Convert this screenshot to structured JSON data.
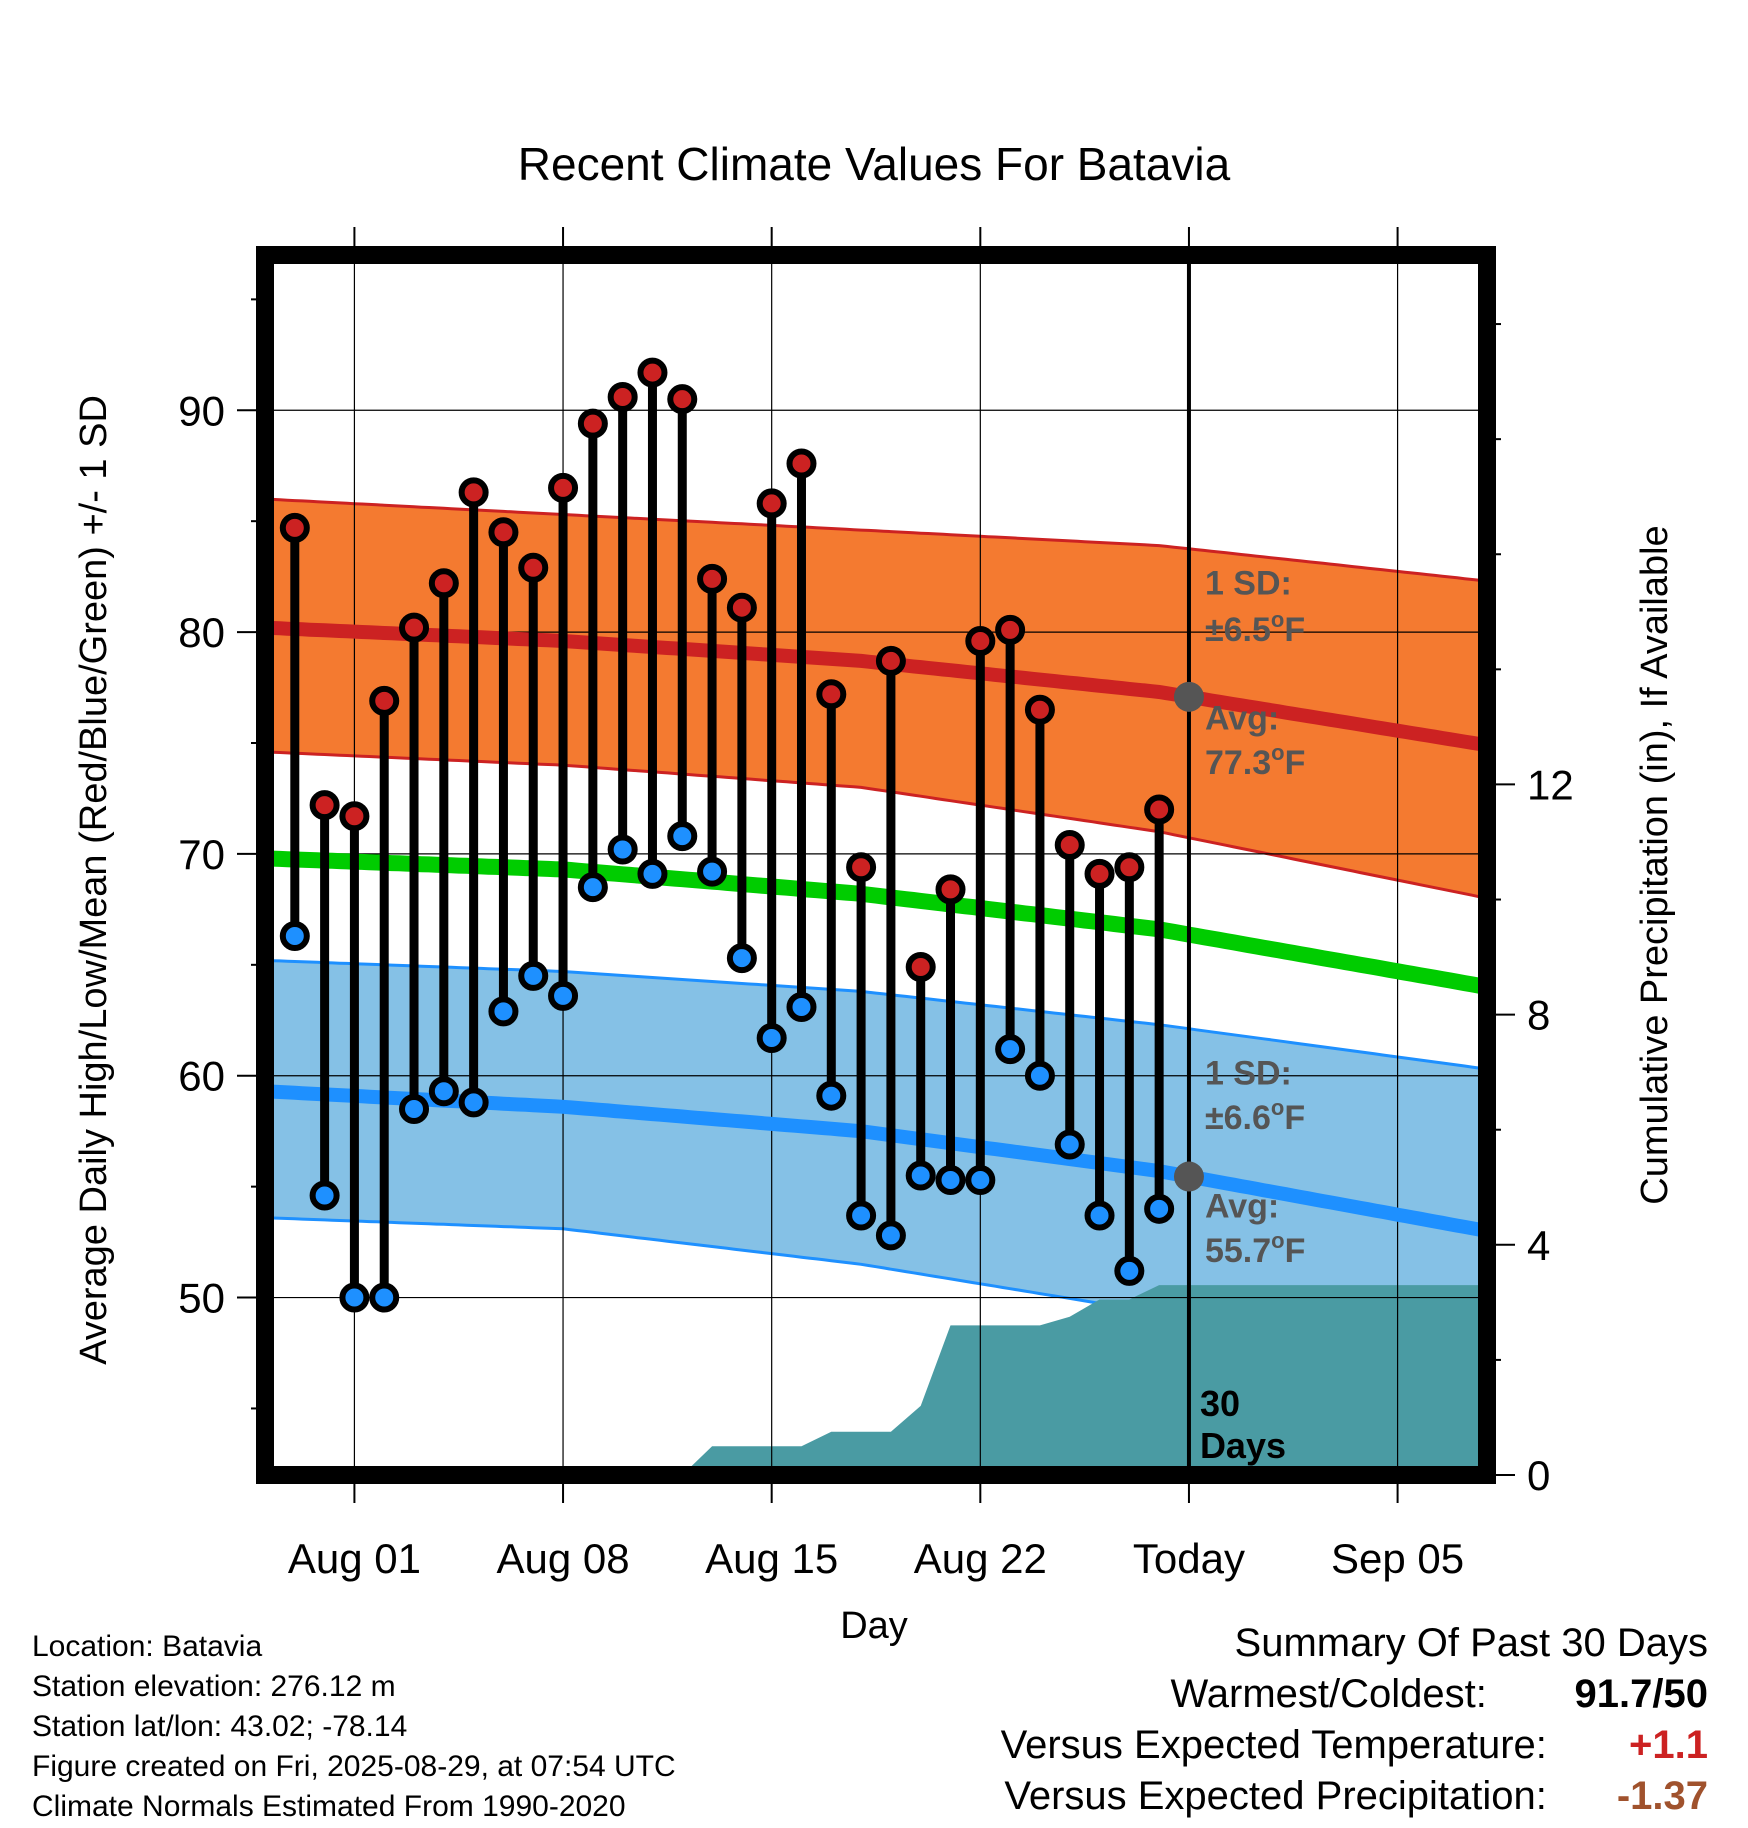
{
  "chart_data": {
    "type": "line",
    "title": "Recent Climate Values For Batavia",
    "xlabel": "Day",
    "ylabel": "Average Daily High/Low/Mean (Red/Blue/Green) +/- 1 SD",
    "y2label": "Cumulative Precipitation (in), If Available",
    "x_range": [
      "2025-07-29",
      "2025-09-08"
    ],
    "ylim": [
      42,
      97
    ],
    "y2lim": [
      0,
      21.2
    ],
    "x_tick_labels": [
      "Aug 01",
      "Aug 08",
      "Aug 15",
      "Aug 22",
      "Today",
      "Sep 05"
    ],
    "y_ticks": [
      50,
      60,
      70,
      80,
      90
    ],
    "y2_ticks": [
      0,
      4,
      8,
      12
    ],
    "grid": true,
    "colors": {
      "high": "#cc2222",
      "low": "#1e90ff",
      "mean": "#00cc00",
      "high_band": "#f47a30",
      "low_band": "#85c1e6",
      "precip": "#4a9ba3",
      "today_marker": "#555555",
      "temp_positive": "#cc2222",
      "precip_negative": "#a0522d"
    },
    "observations": {
      "dates": [
        "2025-07-30",
        "2025-07-31",
        "2025-08-01",
        "2025-08-02",
        "2025-08-03",
        "2025-08-04",
        "2025-08-05",
        "2025-08-06",
        "2025-08-07",
        "2025-08-08",
        "2025-08-09",
        "2025-08-10",
        "2025-08-11",
        "2025-08-12",
        "2025-08-13",
        "2025-08-14",
        "2025-08-15",
        "2025-08-16",
        "2025-08-17",
        "2025-08-18",
        "2025-08-19",
        "2025-08-20",
        "2025-08-21",
        "2025-08-22",
        "2025-08-23",
        "2025-08-24",
        "2025-08-25",
        "2025-08-26",
        "2025-08-27",
        "2025-08-28"
      ],
      "high": [
        84.7,
        72.2,
        71.7,
        76.9,
        80.2,
        82.2,
        86.3,
        84.5,
        82.9,
        86.5,
        89.4,
        90.6,
        91.7,
        90.5,
        82.4,
        81.1,
        85.8,
        87.6,
        77.2,
        69.4,
        78.7,
        64.9,
        68.4,
        79.6,
        80.1,
        76.5,
        70.4,
        69.1,
        69.4,
        72.0
      ],
      "low": [
        66.3,
        54.6,
        50.0,
        50.0,
        58.5,
        59.3,
        58.8,
        62.9,
        64.5,
        63.6,
        68.5,
        70.2,
        69.1,
        70.8,
        69.2,
        65.3,
        61.7,
        63.1,
        59.1,
        53.7,
        52.8,
        55.5,
        55.3,
        55.3,
        61.2,
        60.0,
        56.9,
        53.7,
        51.2,
        54.0
      ]
    },
    "normal_high": {
      "dates": [
        "2025-07-29",
        "2025-08-08",
        "2025-08-18",
        "2025-08-28",
        "2025-09-08"
      ],
      "mean": [
        80.2,
        79.6,
        78.7,
        77.3,
        74.9
      ],
      "upper": [
        86.0,
        85.3,
        84.6,
        83.9,
        82.3
      ],
      "lower": [
        74.6,
        74.0,
        73.0,
        71.0,
        68.0
      ]
    },
    "normal_mean": {
      "dates": [
        "2025-07-29",
        "2025-08-08",
        "2025-08-18",
        "2025-08-28",
        "2025-09-08"
      ],
      "values": [
        69.8,
        69.3,
        68.2,
        66.6,
        64.0
      ]
    },
    "normal_low": {
      "dates": [
        "2025-07-29",
        "2025-08-08",
        "2025-08-18",
        "2025-08-28",
        "2025-09-08"
      ],
      "mean": [
        59.3,
        58.6,
        57.5,
        55.7,
        53.0
      ],
      "upper": [
        65.2,
        64.7,
        63.8,
        62.3,
        60.3
      ],
      "lower": [
        53.6,
        53.1,
        51.5,
        49.3,
        46.2
      ]
    },
    "cumulative_precip": {
      "dates": [
        "2025-07-29",
        "2025-08-12",
        "2025-08-13",
        "2025-08-16",
        "2025-08-17",
        "2025-08-19",
        "2025-08-20",
        "2025-08-21",
        "2025-08-24",
        "2025-08-25",
        "2025-08-26",
        "2025-08-27",
        "2025-08-28",
        "2025-08-29",
        "2025-09-08"
      ],
      "values": [
        0,
        0,
        0.5,
        0.5,
        0.75,
        0.75,
        1.2,
        2.6,
        2.6,
        2.75,
        3.05,
        3.05,
        3.3,
        3.3,
        3.3
      ]
    },
    "annotations": {
      "high_sd": "1 SD:",
      "high_sd_value": "±6.5",
      "high_avg": "Avg:",
      "high_avg_value": "77.3",
      "low_sd": "1 SD:",
      "low_sd_value": "±6.6",
      "low_avg": "Avg:",
      "low_avg_value": "55.7",
      "unit_sup": "o",
      "unit": "F",
      "days_line1": "30",
      "days_line2": "Days"
    }
  },
  "station_info": [
    "Location: Batavia",
    "Station elevation: 276.12 m",
    "Station lat/lon: 43.02; -78.14",
    "Figure created on Fri, 2025-08-29, at 07:54 UTC",
    "Climate Normals Estimated From 1990-2020"
  ],
  "summary": {
    "heading": "Summary Of Past 30 Days",
    "warmest_label": "Warmest/Coldest:",
    "warmest_value": "91.7/50",
    "temp_label": "Versus Expected Temperature:",
    "temp_value": "+1.1",
    "precip_label": "Versus Expected Precipitation:",
    "precip_value": "-1.37"
  }
}
